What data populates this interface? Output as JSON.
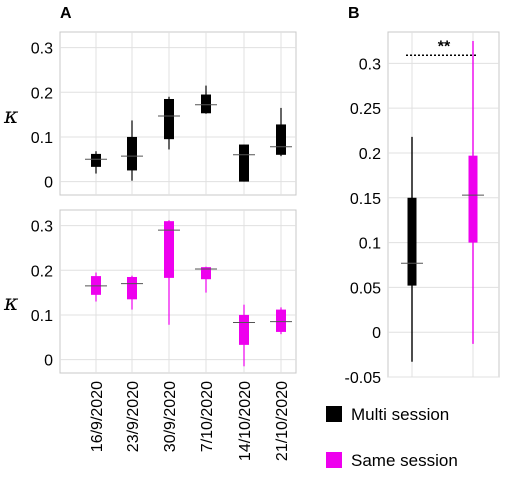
{
  "chart_data": [
    {
      "type": "boxplot",
      "panel_label": "A",
      "ylabel": "κ",
      "ylim": [
        -0.03,
        0.335
      ],
      "yticks": [
        0,
        0.1,
        0.2,
        0.3
      ],
      "ytick_labels": [
        "0",
        "0.1",
        "0.2",
        "0.3"
      ],
      "grid": true,
      "series": [
        {
          "name": "Multi session",
          "color": "#000000",
          "boxes": [
            {
              "category": "16/9/2020",
              "whisker_low": 0.018,
              "q1": 0.033,
              "median": 0.05,
              "q3": 0.062,
              "whisker_high": 0.068
            },
            {
              "category": "23/9/2020",
              "whisker_low": 0.002,
              "q1": 0.025,
              "median": 0.057,
              "q3": 0.1,
              "whisker_high": 0.137
            },
            {
              "category": "30/9/2020",
              "whisker_low": 0.072,
              "q1": 0.095,
              "median": 0.147,
              "q3": 0.185,
              "whisker_high": 0.19
            },
            {
              "category": "7/10/2020",
              "whisker_low": 0.152,
              "q1": 0.153,
              "median": 0.172,
              "q3": 0.195,
              "whisker_high": 0.215
            },
            {
              "category": "14/10/2020",
              "whisker_low": -0.0,
              "q1": 0.0,
              "median": 0.06,
              "q3": 0.083,
              "whisker_high": 0.083
            },
            {
              "category": "21/10/2020",
              "whisker_low": 0.057,
              "q1": 0.06,
              "median": 0.078,
              "q3": 0.128,
              "whisker_high": 0.165
            }
          ]
        }
      ]
    },
    {
      "type": "boxplot",
      "ylabel": "κ",
      "ylim": [
        -0.03,
        0.335
      ],
      "yticks": [
        0,
        0.1,
        0.2,
        0.3
      ],
      "ytick_labels": [
        "0",
        "0.1",
        "0.2",
        "0.3"
      ],
      "categories": [
        "16/9/2020",
        "23/9/2020",
        "30/9/2020",
        "7/10/2020",
        "14/10/2020",
        "21/10/2020"
      ],
      "grid": true,
      "series": [
        {
          "name": "Same session",
          "color": "#ee00ee",
          "boxes": [
            {
              "category": "16/9/2020",
              "whisker_low": 0.13,
              "q1": 0.145,
              "median": 0.165,
              "q3": 0.187,
              "whisker_high": 0.195
            },
            {
              "category": "23/9/2020",
              "whisker_low": 0.112,
              "q1": 0.135,
              "median": 0.17,
              "q3": 0.185,
              "whisker_high": 0.188
            },
            {
              "category": "30/9/2020",
              "whisker_low": 0.078,
              "q1": 0.183,
              "median": 0.29,
              "q3": 0.31,
              "whisker_high": 0.312
            },
            {
              "category": "7/10/2020",
              "whisker_low": 0.15,
              "q1": 0.18,
              "median": 0.203,
              "q3": 0.207,
              "whisker_high": 0.208
            },
            {
              "category": "14/10/2020",
              "whisker_low": -0.015,
              "q1": 0.033,
              "median": 0.083,
              "q3": 0.1,
              "whisker_high": 0.123
            },
            {
              "category": "21/10/2020",
              "whisker_low": 0.057,
              "q1": 0.062,
              "median": 0.085,
              "q3": 0.112,
              "whisker_high": 0.117
            }
          ]
        }
      ]
    },
    {
      "type": "boxplot",
      "panel_label": "B",
      "ylim": [
        -0.05,
        0.335
      ],
      "yticks": [
        -0.05,
        0,
        0.05,
        0.1,
        0.15,
        0.2,
        0.25,
        0.3
      ],
      "ytick_labels": [
        "-0.05",
        "0",
        "0.05",
        "0.1",
        "0.15",
        "0.2",
        "0.25",
        "0.3"
      ],
      "grid": true,
      "legend": [
        "Multi session",
        "Same session"
      ],
      "legend_placement": "bottom-right",
      "significance": {
        "label": "**",
        "y": 0.309
      },
      "series": [
        {
          "name": "Multi session",
          "color": "#000000",
          "boxes": [
            {
              "whisker_low": -0.033,
              "q1": 0.052,
              "median": 0.077,
              "q3": 0.15,
              "whisker_high": 0.218
            }
          ]
        },
        {
          "name": "Same session",
          "color": "#ee00ee",
          "boxes": [
            {
              "whisker_low": -0.013,
              "q1": 0.1,
              "median": 0.153,
              "q3": 0.197,
              "whisker_high": 0.325
            }
          ]
        }
      ]
    }
  ]
}
